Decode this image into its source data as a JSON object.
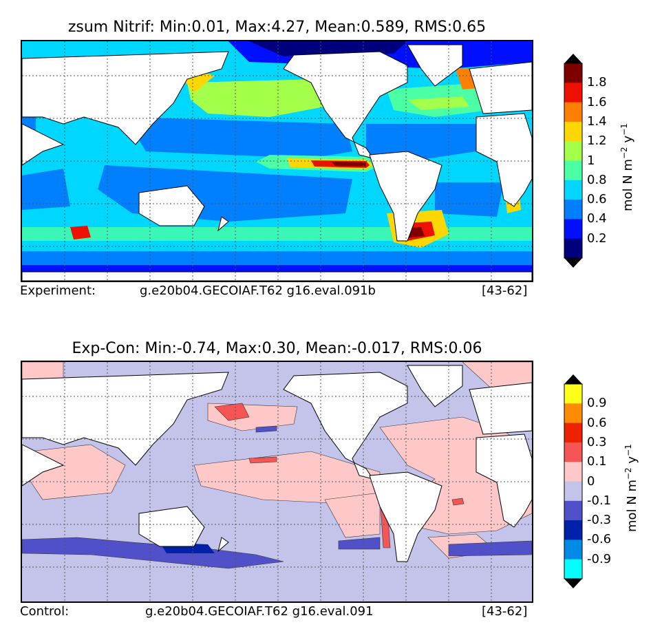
{
  "panel_top": {
    "title": "zsum Nitrif: Min:0.01, Max:4.27, Mean:0.589, RMS:0.65",
    "caption_left": "Experiment:",
    "caption_case": "g.e20b04.GECOIAF.T62 g16.eval.091b",
    "caption_years": "[43-62]",
    "colorbar": {
      "unit_main": "mol N m",
      "unit_exp1": "−2",
      "unit_mid": " y",
      "unit_exp2": "−1",
      "labels": [
        "1.8",
        "1.6",
        "1.4",
        "1.2",
        "1",
        "0.8",
        "0.6",
        "0.4",
        "0.2"
      ],
      "colors": [
        "#7f0000",
        "#ee1000",
        "#ff7f00",
        "#ffd700",
        "#a4ff4a",
        "#4affa4",
        "#00d7ff",
        "#0080ff",
        "#0010ff",
        "#00007f"
      ],
      "under_color": "#000000",
      "over_color": "#000000"
    }
  },
  "panel_bottom": {
    "title": "Exp-Con: Min:-0.74, Max:0.30, Mean:-0.017, RMS:0.06",
    "caption_left": "Control:",
    "caption_case": "g.e20b04.GECOIAF.T62 g16.eval.091",
    "caption_years": "[43-62]",
    "colorbar": {
      "unit_main": "mol N m",
      "unit_exp1": "−2",
      "unit_mid": " y",
      "unit_exp2": "−1",
      "labels": [
        "0.9",
        "0.6",
        "0.3",
        "0.1",
        "0",
        "-0.1",
        "-0.3",
        "-0.6",
        "-0.9"
      ],
      "colors": [
        "#ffff1a",
        "#ff8c00",
        "#ee2200",
        "#f55555",
        "#ffc8c8",
        "#c4c4ea",
        "#5050c8",
        "#0022aa",
        "#008ce6",
        "#00ffff"
      ],
      "under_color": "#000000",
      "over_color": "#000000"
    }
  }
}
